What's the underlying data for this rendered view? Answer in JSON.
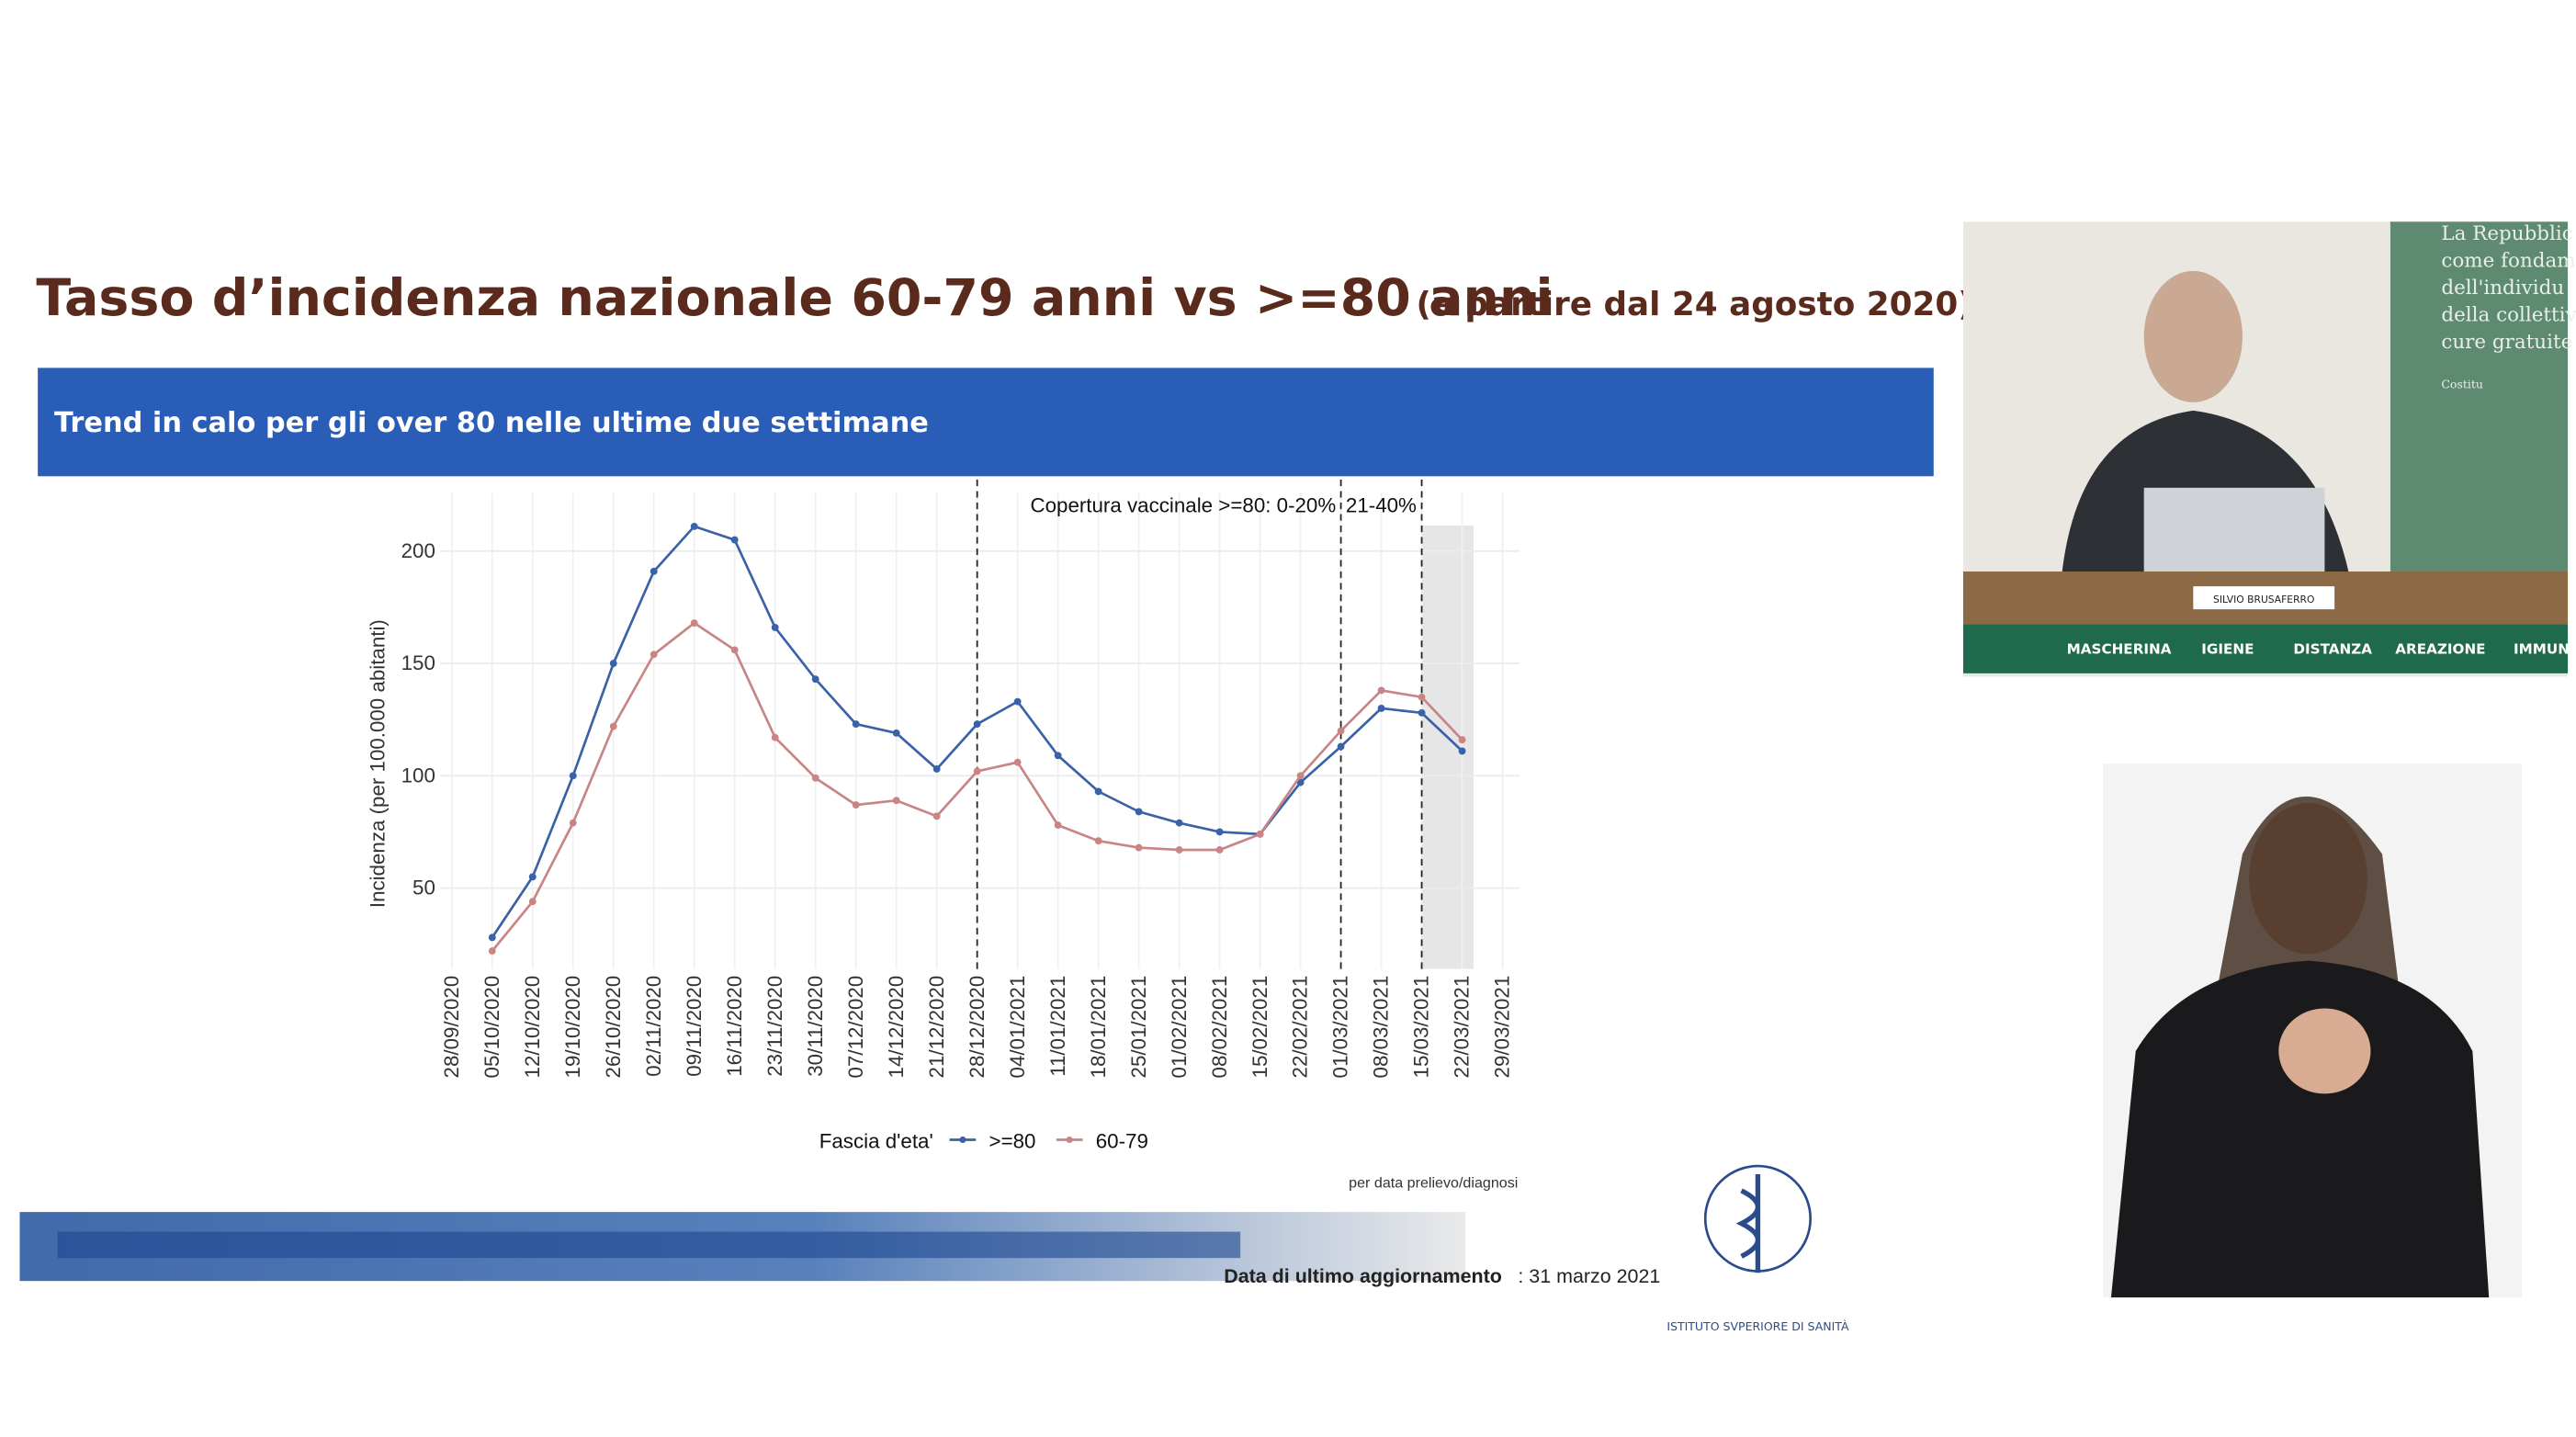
{
  "slide": {
    "title": "Tasso d’incidenza nazionale 60-79 anni vs >=80 anni",
    "title_note": "(a partire dal 24 agosto 2020)",
    "banner": "Trend in calo per gli over 80 nelle ultime due settimane",
    "source_note": "per data prelievo/diagnosi",
    "update_label": "Data di ultimo aggiornamento",
    "update_date": ": 31 marzo 2021",
    "logo_text": "ISTITUTO SVPERIORE DI SANITÀ"
  },
  "chart_data": {
    "type": "line",
    "y_label": "Incidenza (per 100.000 abitanti)",
    "categories": [
      "28/09/2020",
      "05/10/2020",
      "12/10/2020",
      "19/10/2020",
      "26/10/2020",
      "02/11/2020",
      "09/11/2020",
      "16/11/2020",
      "23/11/2020",
      "30/11/2020",
      "07/12/2020",
      "14/12/2020",
      "21/12/2020",
      "28/12/2020",
      "04/01/2021",
      "11/01/2021",
      "18/01/2021",
      "25/01/2021",
      "01/02/2021",
      "08/02/2021",
      "15/02/2021",
      "22/02/2021",
      "01/03/2021",
      "08/03/2021",
      "15/03/2021",
      "22/03/2021",
      "29/03/2021"
    ],
    "series": [
      {
        "name": ">=80",
        "color": "#3a62a7",
        "values": [
          null,
          28,
          55,
          100,
          150,
          191,
          211,
          205,
          166,
          143,
          123,
          119,
          103,
          123,
          133,
          109,
          93,
          84,
          79,
          75,
          74,
          97,
          113,
          130,
          128,
          111,
          null
        ]
      },
      {
        "name": "60-79",
        "color": "#c98585",
        "values": [
          null,
          22,
          44,
          79,
          122,
          154,
          168,
          156,
          117,
          99,
          87,
          89,
          82,
          102,
          106,
          78,
          71,
          68,
          67,
          67,
          74,
          100,
          120,
          138,
          135,
          116,
          null
        ]
      }
    ],
    "ylim": [
      14,
      226
    ],
    "yticks": [
      50,
      100,
      150,
      200
    ],
    "grid": true,
    "legend_title": "Fascia d'eta'",
    "legend_position": "bottom",
    "vlines": [
      "28/12/2020",
      "01/03/2021",
      "15/03/2021"
    ],
    "shaded": [
      "15/03/2021",
      "22/03/2021"
    ],
    "annotations": [
      "Copertura vaccinale >=80:  0-20%",
      "21-40%"
    ]
  },
  "video": {
    "speaker_name": "SILVIO BRUSAFERRO",
    "banner_items": [
      "MASCHERINA",
      "IGIENE",
      "DISTANZA",
      "AREAZIONE",
      "IMMUNI"
    ],
    "wall_text": [
      "La Repubblic",
      "come fondam",
      "dell'individu",
      "della collettiv",
      "cure gratuite",
      "Costitu"
    ]
  }
}
